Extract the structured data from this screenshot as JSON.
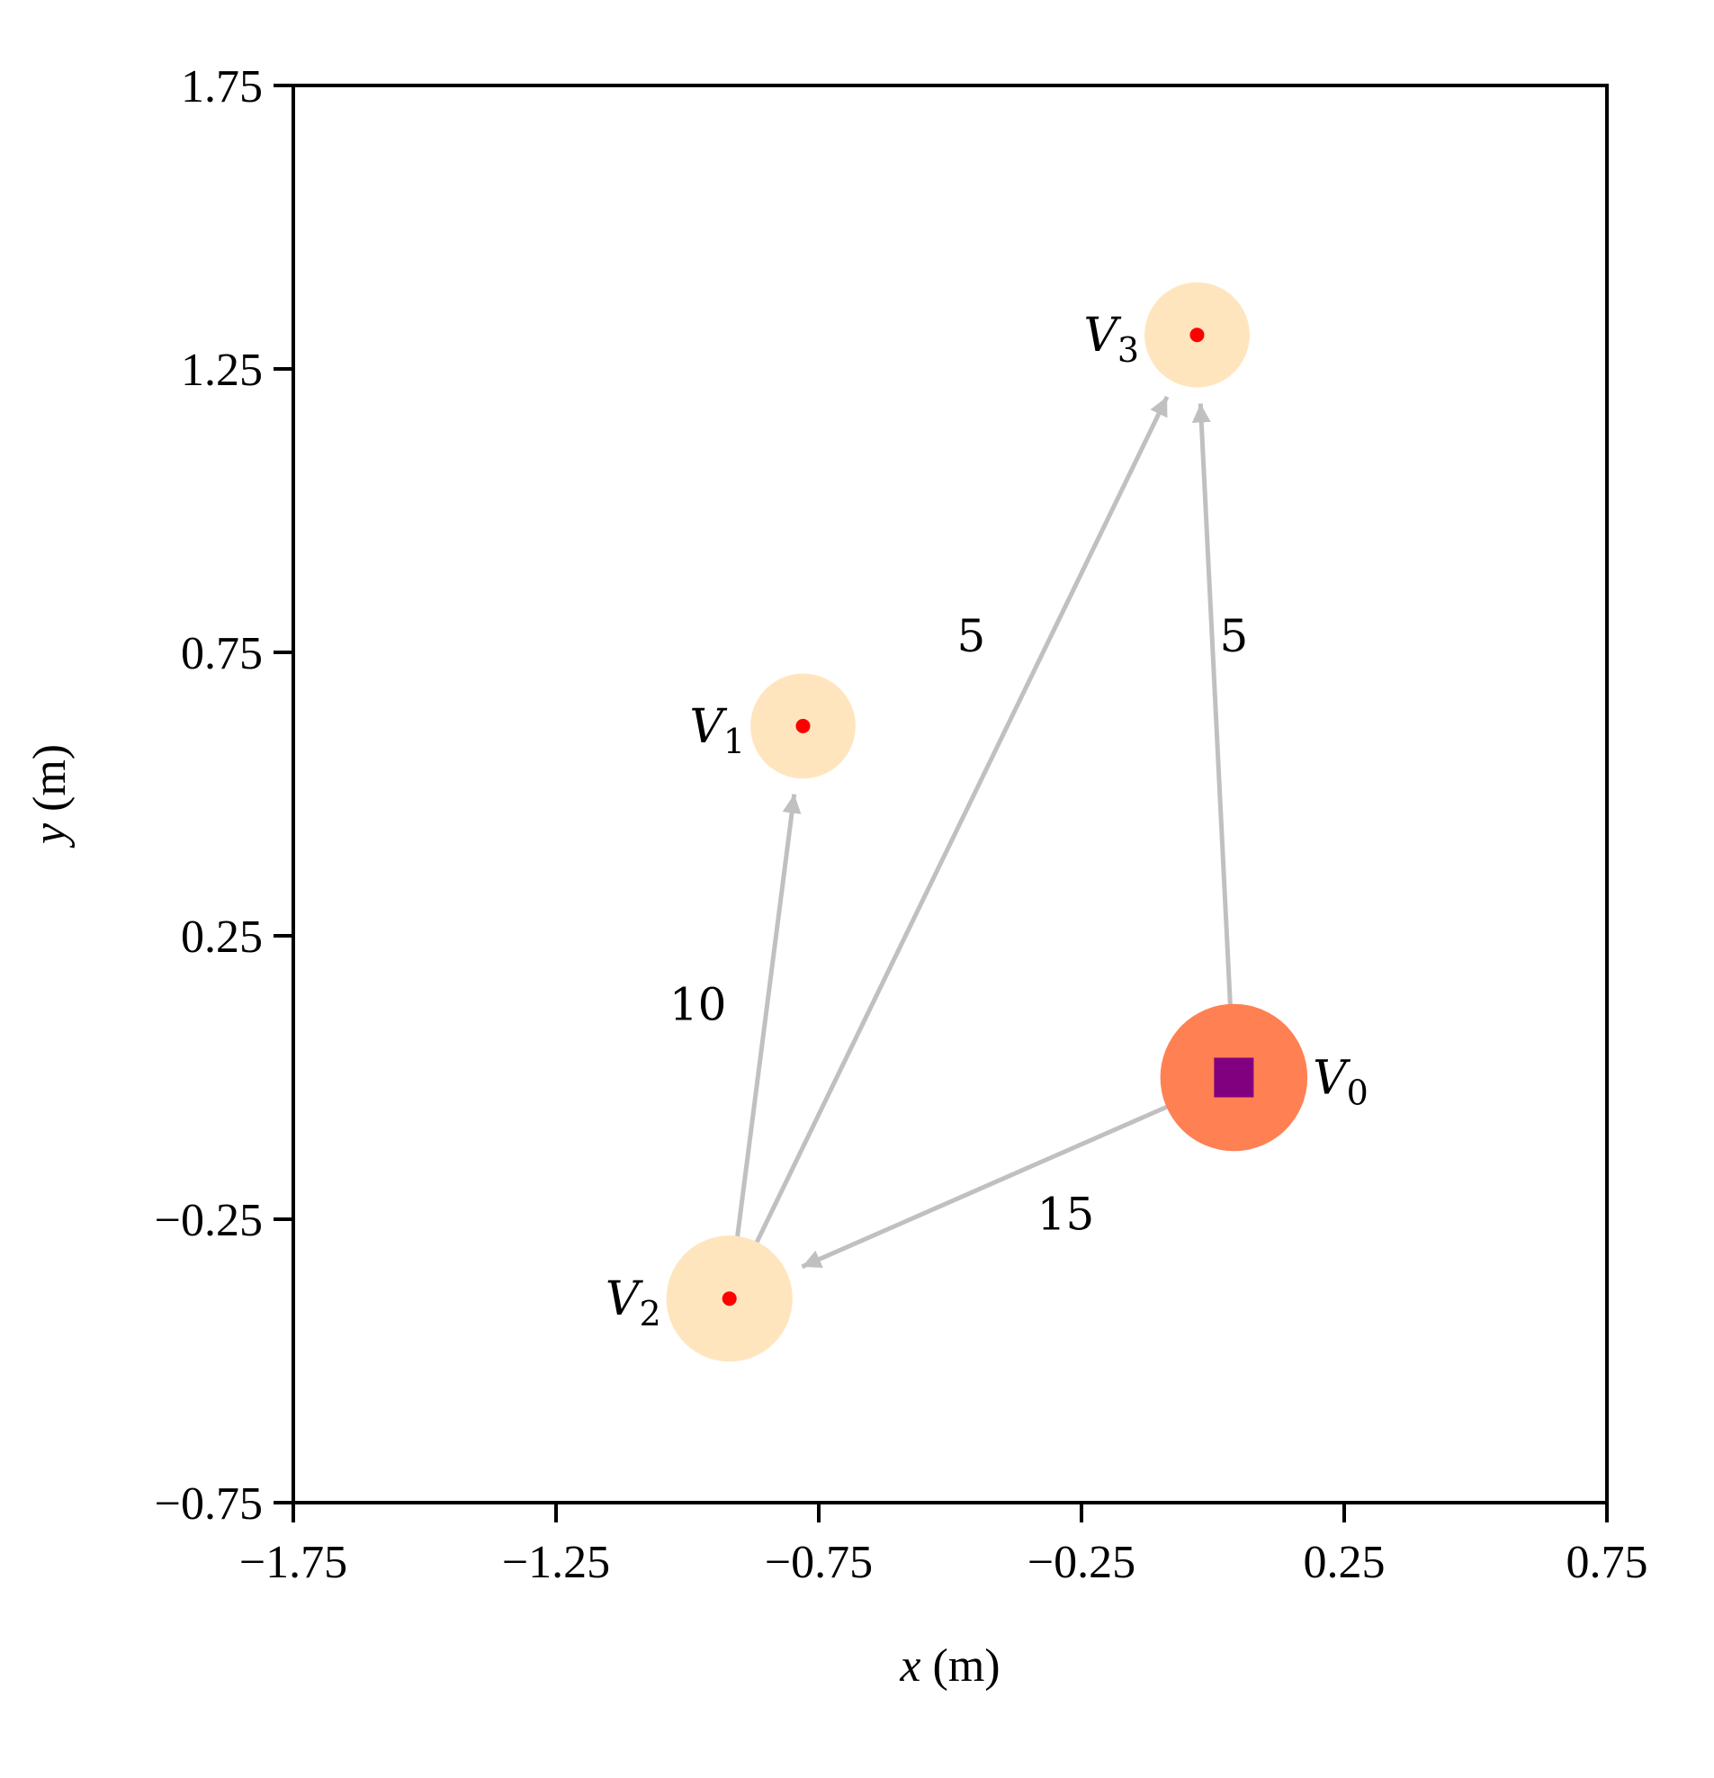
{
  "chart_data": {
    "type": "scatter",
    "title": "",
    "xlabel": "x (m)",
    "ylabel": "y (m)",
    "xlim": [
      -1.75,
      0.75
    ],
    "ylim": [
      -0.75,
      1.75
    ],
    "xticks": [
      "−1.75",
      "−1.25",
      "−0.75",
      "−0.25",
      "0.25",
      "0.75"
    ],
    "xtick_values": [
      -1.75,
      -1.25,
      -0.75,
      -0.25,
      0.25,
      0.75
    ],
    "yticks": [
      "1.75",
      "1.25",
      "0.75",
      "0.25",
      "−0.25",
      "−0.75"
    ],
    "ytick_values": [
      1.75,
      1.25,
      0.75,
      0.25,
      -0.25,
      -0.75
    ],
    "grid": false,
    "nodes": [
      {
        "id": "V0",
        "label": "V",
        "sub": "0",
        "x": 0.04,
        "y": 0.0,
        "radius": 0.14,
        "fill": "#ff8052",
        "marker": "square",
        "marker_color": "#800080",
        "label_side": "right"
      },
      {
        "id": "V1",
        "label": "V",
        "sub": "1",
        "x": -0.78,
        "y": 0.62,
        "radius": 0.1,
        "fill": "#ffe5be",
        "marker": "dot",
        "marker_color": "#ff0000",
        "label_side": "left"
      },
      {
        "id": "V2",
        "label": "V",
        "sub": "2",
        "x": -0.92,
        "y": -0.39,
        "radius": 0.12,
        "fill": "#ffe5be",
        "marker": "dot",
        "marker_color": "#ff0000",
        "label_side": "left"
      },
      {
        "id": "V3",
        "label": "V",
        "sub": "3",
        "x": -0.03,
        "y": 1.31,
        "radius": 0.1,
        "fill": "#ffe5be",
        "marker": "dot",
        "marker_color": "#ff0000",
        "label_side": "left"
      }
    ],
    "edges": [
      {
        "from": "V0",
        "to": "V2",
        "weight": "15",
        "label_x": -0.28,
        "label_y": -0.24
      },
      {
        "from": "V2",
        "to": "V1",
        "weight": "10",
        "label_x": -0.98,
        "label_y": 0.13
      },
      {
        "from": "V2",
        "to": "V3",
        "weight": "5",
        "label_x": -0.46,
        "label_y": 0.78
      },
      {
        "from": "V0",
        "to": "V3",
        "weight": "5",
        "label_x": 0.04,
        "label_y": 0.78
      }
    ],
    "edge_color": "#c0c0c0"
  }
}
